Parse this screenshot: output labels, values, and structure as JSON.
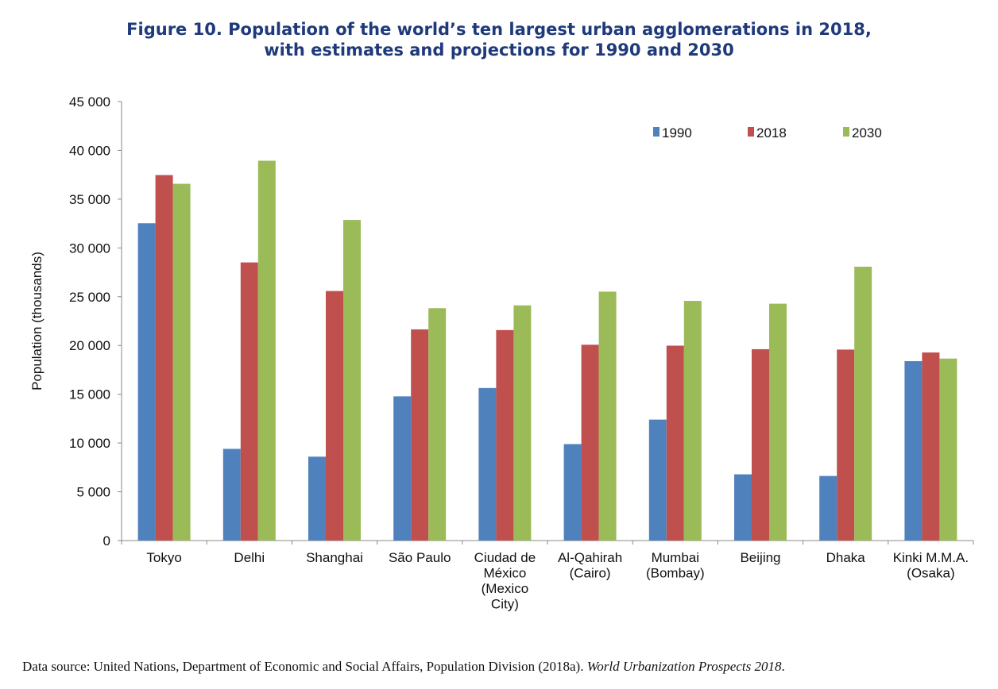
{
  "chart_data": {
    "type": "bar",
    "title_line1": "Figure 10. Population of the world’s ten largest urban agglomerations in 2018,",
    "title_line2": "with estimates and projections for 1990 and 2030",
    "xlabel": "",
    "ylabel": "Population (thousands)",
    "ylim": [
      0,
      45000
    ],
    "yticks": [
      0,
      5000,
      10000,
      15000,
      20000,
      25000,
      30000,
      35000,
      40000,
      45000
    ],
    "ytick_labels": [
      "0",
      "5 000",
      "10 000",
      "15 000",
      "20 000",
      "25 000",
      "30 000",
      "35 000",
      "40 000",
      "45 000"
    ],
    "grid": false,
    "legend_position": "top-right",
    "categories": [
      [
        "Tokyo"
      ],
      [
        "Delhi"
      ],
      [
        "Shanghai"
      ],
      [
        "São Paulo"
      ],
      [
        "Ciudad de",
        "México",
        "(Mexico",
        "City)"
      ],
      [
        "Al-Qahirah",
        "(Cairo)"
      ],
      [
        "Mumbai",
        "(Bombay)"
      ],
      [
        "Beijing"
      ],
      [
        "Dhaka"
      ],
      [
        "Kinki M.M.A.",
        "(Osaka)"
      ]
    ],
    "series": [
      {
        "name": "1990",
        "color": "#4f81bd",
        "values": [
          32530,
          9400,
          8600,
          14780,
          15640,
          9890,
          12400,
          6790,
          6620,
          18390
        ]
      },
      {
        "name": "2018",
        "color": "#c0504d",
        "values": [
          37468,
          28514,
          25582,
          21650,
          21581,
          20076,
          19980,
          19618,
          19578,
          19281
        ]
      },
      {
        "name": "2030",
        "color": "#9bbb59",
        "values": [
          36574,
          38939,
          32869,
          23824,
          24111,
          25517,
          24572,
          24282,
          28076,
          18658
        ]
      }
    ]
  },
  "source": {
    "text": "Data source: United Nations, Department of Economic and Social Affairs, Population Division (2018a). ",
    "italic": "World Urbanization Prospects 2018",
    "end": "."
  }
}
